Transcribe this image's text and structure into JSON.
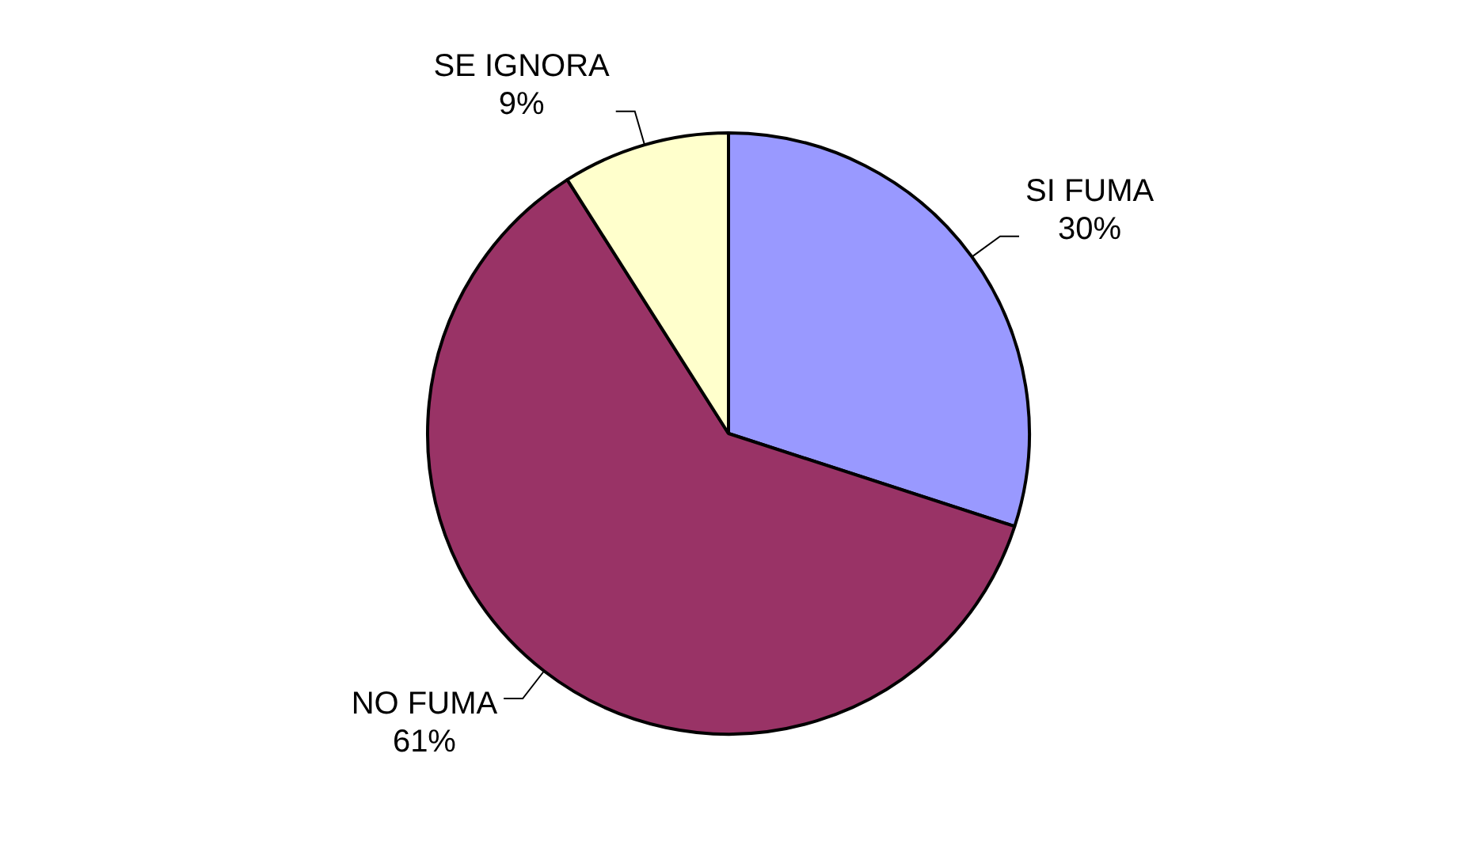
{
  "chart_data": {
    "type": "pie",
    "categories": [
      "SI FUMA",
      "NO FUMA",
      "SE IGNORA"
    ],
    "values": [
      30,
      61,
      9
    ],
    "colors": [
      "#9999ff",
      "#993366",
      "#ffffcc"
    ],
    "value_labels": [
      "30%",
      "61%",
      "9%"
    ]
  }
}
